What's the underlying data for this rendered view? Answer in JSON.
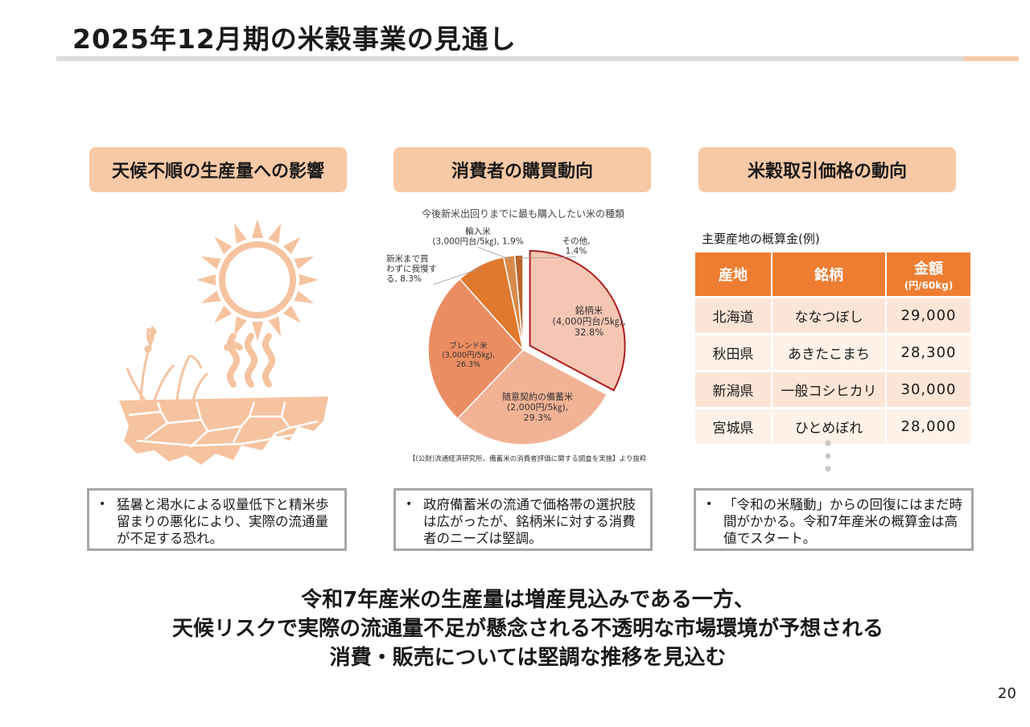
{
  "title": "2025年12月期の米穀事業の見通し",
  "columns": [
    {
      "header": "天候不順の生産量への影響",
      "note": "猛暑と渇水による収量低下と精米歩留まりの悪化により、実際の流通量が不足する恐れ。"
    },
    {
      "header": "消費者の購買動向",
      "note": "政府備蓄米の流通で価格帯の選択肢は広がったが、銘柄米に対する消費者のニーズは堅調。"
    },
    {
      "header": "米穀取引価格の動向",
      "note": "「令和の米騒動」からの回復にはまだ時間がかかる。令和7年産米の概算金は高値でスタート。"
    }
  ],
  "note_bullet": "•",
  "chart_data": {
    "type": "pie",
    "title": "今後新米出回りまでに最も購入したい米の種類",
    "slices": [
      {
        "label_lines": [
          "銘柄米",
          "(4,000円台/5㎏),",
          "32.8%"
        ],
        "value": 32.8,
        "color": "#f6c6b4",
        "exploded": true
      },
      {
        "label_lines": [
          "随意契約の備蓄米",
          "(2,000円/5㎏),",
          "29.3%"
        ],
        "value": 29.3,
        "color": "#f2b295"
      },
      {
        "label_lines": [
          "ブレンド米",
          "(3,000円/5㎏),",
          "26.3%"
        ],
        "value": 26.3,
        "color": "#eb8d62"
      },
      {
        "label_lines": [
          "新米まで買",
          "わずに我慢す",
          "る, 8.3%"
        ],
        "value": 8.3,
        "color": "#e0782e"
      },
      {
        "label_lines": [
          "輸入米",
          "(3,000円台/5㎏), 1.9%"
        ],
        "value": 1.9,
        "color": "#d98a4a"
      },
      {
        "label_lines": [
          "その他,",
          "1.4%"
        ],
        "value": 1.4,
        "color": "#b9652b"
      }
    ],
    "source": "【(公財)流通経済研究所、備蓄米の消費者評価に関する調査を実施】より抜粋"
  },
  "price_table": {
    "caption": "主要産地の概算金(例)",
    "headers": [
      "産地",
      "銘柄",
      "金額"
    ],
    "unit": "(円/60kg)",
    "rows": [
      [
        "北海道",
        "ななつぼし",
        "29,000"
      ],
      [
        "秋田県",
        "あきたこまち",
        "28,300"
      ],
      [
        "新潟県",
        "一般コシヒカリ",
        "30,000"
      ],
      [
        "宮城県",
        "ひとめぼれ",
        "28,000"
      ]
    ]
  },
  "summary": [
    "令和7年産米の生産量は増産見込みである一方、",
    "天候リスクで実際の流通量不足が懸念される不透明な市場環境が予想される",
    "消費・販売については堅調な推移を見込む"
  ],
  "page_number": "20",
  "colors": {
    "accent": "#ee7d31",
    "header_fill": "#f8c9a6",
    "illustration": "#f6c3a0"
  }
}
